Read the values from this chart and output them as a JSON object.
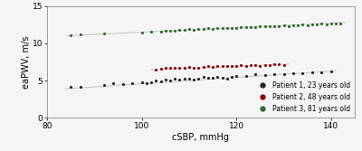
{
  "title": "",
  "xlabel": "cSBP, mmHg",
  "ylabel": "eaPWV, m/s",
  "xlim": [
    80,
    145
  ],
  "ylim": [
    0,
    15
  ],
  "xticks": [
    80,
    100,
    120,
    140
  ],
  "yticks": [
    0,
    5,
    10,
    15
  ],
  "background_color": "#f5f5f5",
  "patient1": {
    "label": "Patient 1, 23 years old",
    "color": "#222222",
    "x": [
      85,
      87,
      92,
      94,
      96,
      98,
      100,
      101,
      102,
      103,
      104,
      105,
      106,
      107,
      108,
      109,
      110,
      111,
      112,
      113,
      114,
      115,
      116,
      117,
      118,
      119,
      120,
      122,
      124,
      126,
      128,
      130,
      132,
      134,
      136,
      138,
      140
    ],
    "y": [
      4.2,
      4.1,
      4.4,
      4.7,
      4.5,
      4.6,
      4.8,
      4.6,
      4.8,
      5.0,
      4.9,
      5.1,
      5.0,
      5.2,
      5.1,
      5.3,
      5.2,
      5.1,
      5.3,
      5.5,
      5.4,
      5.4,
      5.5,
      5.4,
      5.3,
      5.5,
      5.6,
      5.6,
      5.8,
      5.7,
      5.9,
      5.8,
      6.0,
      6.0,
      6.1,
      6.1,
      6.2
    ],
    "trend_x": [
      84,
      141
    ],
    "trend_y": [
      3.9,
      6.3
    ]
  },
  "patient2": {
    "label": "Patient 2, 48 years old",
    "color": "#8b0000",
    "x": [
      103,
      104,
      105,
      106,
      107,
      108,
      109,
      110,
      111,
      112,
      113,
      114,
      115,
      116,
      117,
      118,
      119,
      120,
      121,
      122,
      123,
      124,
      125,
      126,
      127,
      128,
      129,
      130
    ],
    "y": [
      6.5,
      6.6,
      6.65,
      6.7,
      6.65,
      6.7,
      6.75,
      6.8,
      6.7,
      6.75,
      6.85,
      6.9,
      6.85,
      6.9,
      6.95,
      7.0,
      6.95,
      7.0,
      7.05,
      7.0,
      7.1,
      7.05,
      7.0,
      7.1,
      7.05,
      7.15,
      7.2,
      7.1
    ],
    "trend_x": [
      102,
      131
    ],
    "trend_y": [
      6.42,
      7.22
    ]
  },
  "patient3": {
    "label": "Patient 3, 81 years old",
    "color": "#2d6a2d",
    "x": [
      85,
      87,
      92,
      100,
      102,
      104,
      105,
      106,
      107,
      108,
      109,
      110,
      111,
      112,
      113,
      114,
      115,
      116,
      117,
      118,
      119,
      120,
      121,
      122,
      123,
      124,
      125,
      126,
      127,
      128,
      129,
      130,
      131,
      132,
      133,
      134,
      135,
      136,
      137,
      138,
      139,
      140,
      141,
      142
    ],
    "y": [
      11.1,
      11.2,
      11.3,
      11.5,
      11.6,
      11.6,
      11.65,
      11.7,
      11.7,
      11.75,
      11.8,
      11.9,
      11.85,
      11.9,
      11.95,
      12.0,
      11.95,
      12.0,
      12.05,
      12.1,
      12.05,
      12.1,
      12.15,
      12.2,
      12.15,
      12.2,
      12.25,
      12.3,
      12.25,
      12.3,
      12.35,
      12.4,
      12.35,
      12.4,
      12.45,
      12.5,
      12.45,
      12.5,
      12.55,
      12.6,
      12.55,
      12.6,
      12.65,
      12.7
    ],
    "trend_x": [
      84,
      143
    ],
    "trend_y": [
      11.0,
      12.8
    ]
  },
  "trend_color": "#c8c8c8",
  "marker_size": 5,
  "legend_fontsize": 5.5,
  "axis_fontsize": 7,
  "tick_fontsize": 6.5
}
